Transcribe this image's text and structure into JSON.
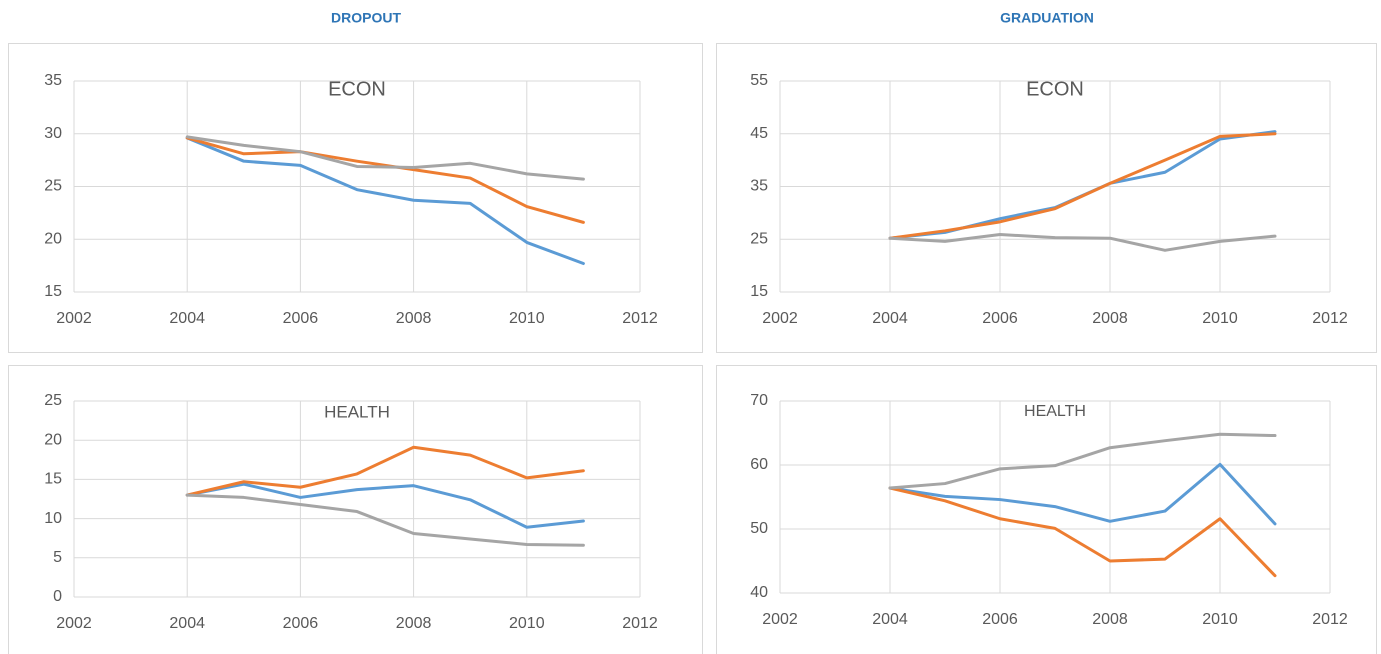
{
  "columns": [
    "DROPOUT",
    "GRADUATION"
  ],
  "chart_data": [
    {
      "type": "line",
      "title": "ECON",
      "x": [
        2004,
        2005,
        2006,
        2007,
        2008,
        2009,
        2010,
        2011
      ],
      "xlim": [
        2002,
        2012
      ],
      "xticks": [
        2002,
        2004,
        2006,
        2008,
        2010,
        2012
      ],
      "ylim": [
        15,
        35
      ],
      "yticks": [
        15,
        20,
        25,
        30,
        35
      ],
      "grid": true,
      "series": [
        {
          "color": "#5b9bd5",
          "values": [
            29.6,
            27.4,
            27.0,
            24.7,
            23.7,
            23.4,
            19.7,
            17.7
          ]
        },
        {
          "color": "#ed7d31",
          "values": [
            29.6,
            28.1,
            28.3,
            27.4,
            26.6,
            25.8,
            23.1,
            21.6
          ]
        },
        {
          "color": "#a5a5a5",
          "values": [
            29.7,
            28.9,
            28.3,
            26.9,
            26.8,
            27.2,
            26.2,
            25.7
          ]
        }
      ]
    },
    {
      "type": "line",
      "title": "ECON",
      "x": [
        2004,
        2005,
        2006,
        2007,
        2008,
        2009,
        2010,
        2011
      ],
      "xlim": [
        2002,
        2012
      ],
      "xticks": [
        2002,
        2004,
        2006,
        2008,
        2010,
        2012
      ],
      "ylim": [
        15,
        55
      ],
      "yticks": [
        15,
        25,
        35,
        45,
        55
      ],
      "grid": true,
      "series": [
        {
          "color": "#5b9bd5",
          "values": [
            25.2,
            26.3,
            28.9,
            31.0,
            35.6,
            37.7,
            44.0,
            45.4
          ]
        },
        {
          "color": "#ed7d31",
          "values": [
            25.2,
            26.6,
            28.3,
            30.8,
            35.6,
            40.0,
            44.5,
            45.0
          ]
        },
        {
          "color": "#a5a5a5",
          "values": [
            25.2,
            24.6,
            25.9,
            25.3,
            25.2,
            22.9,
            24.6,
            25.6
          ]
        }
      ]
    },
    {
      "type": "line",
      "title": "HEALTH",
      "x": [
        2004,
        2005,
        2006,
        2007,
        2008,
        2009,
        2010,
        2011
      ],
      "xlim": [
        2002,
        2012
      ],
      "xticks": [
        2002,
        2004,
        2006,
        2008,
        2010,
        2012
      ],
      "ylim": [
        0,
        25
      ],
      "yticks": [
        0,
        5,
        10,
        15,
        20,
        25
      ],
      "grid": true,
      "series": [
        {
          "color": "#5b9bd5",
          "values": [
            13.0,
            14.4,
            12.7,
            13.7,
            14.2,
            12.4,
            8.9,
            9.7
          ]
        },
        {
          "color": "#ed7d31",
          "values": [
            13.0,
            14.7,
            14.0,
            15.7,
            19.1,
            18.1,
            15.2,
            16.1
          ]
        },
        {
          "color": "#a5a5a5",
          "values": [
            13.0,
            12.7,
            11.8,
            10.9,
            8.1,
            7.4,
            6.7,
            6.6
          ]
        }
      ]
    },
    {
      "type": "line",
      "title": "HEALTH",
      "x": [
        2004,
        2005,
        2006,
        2007,
        2008,
        2009,
        2010,
        2011
      ],
      "xlim": [
        2002,
        2012
      ],
      "xticks": [
        2002,
        2004,
        2006,
        2008,
        2010,
        2012
      ],
      "ylim": [
        40,
        70
      ],
      "yticks": [
        40,
        50,
        60,
        70
      ],
      "grid": true,
      "series": [
        {
          "color": "#5b9bd5",
          "values": [
            56.4,
            55.1,
            54.6,
            53.5,
            51.2,
            52.8,
            60.1,
            50.8
          ]
        },
        {
          "color": "#ed7d31",
          "values": [
            56.4,
            54.4,
            51.6,
            50.1,
            45.0,
            45.3,
            51.6,
            42.7
          ]
        },
        {
          "color": "#a5a5a5",
          "values": [
            56.4,
            57.1,
            59.4,
            59.9,
            62.7,
            63.8,
            64.8,
            64.6
          ]
        }
      ]
    }
  ]
}
